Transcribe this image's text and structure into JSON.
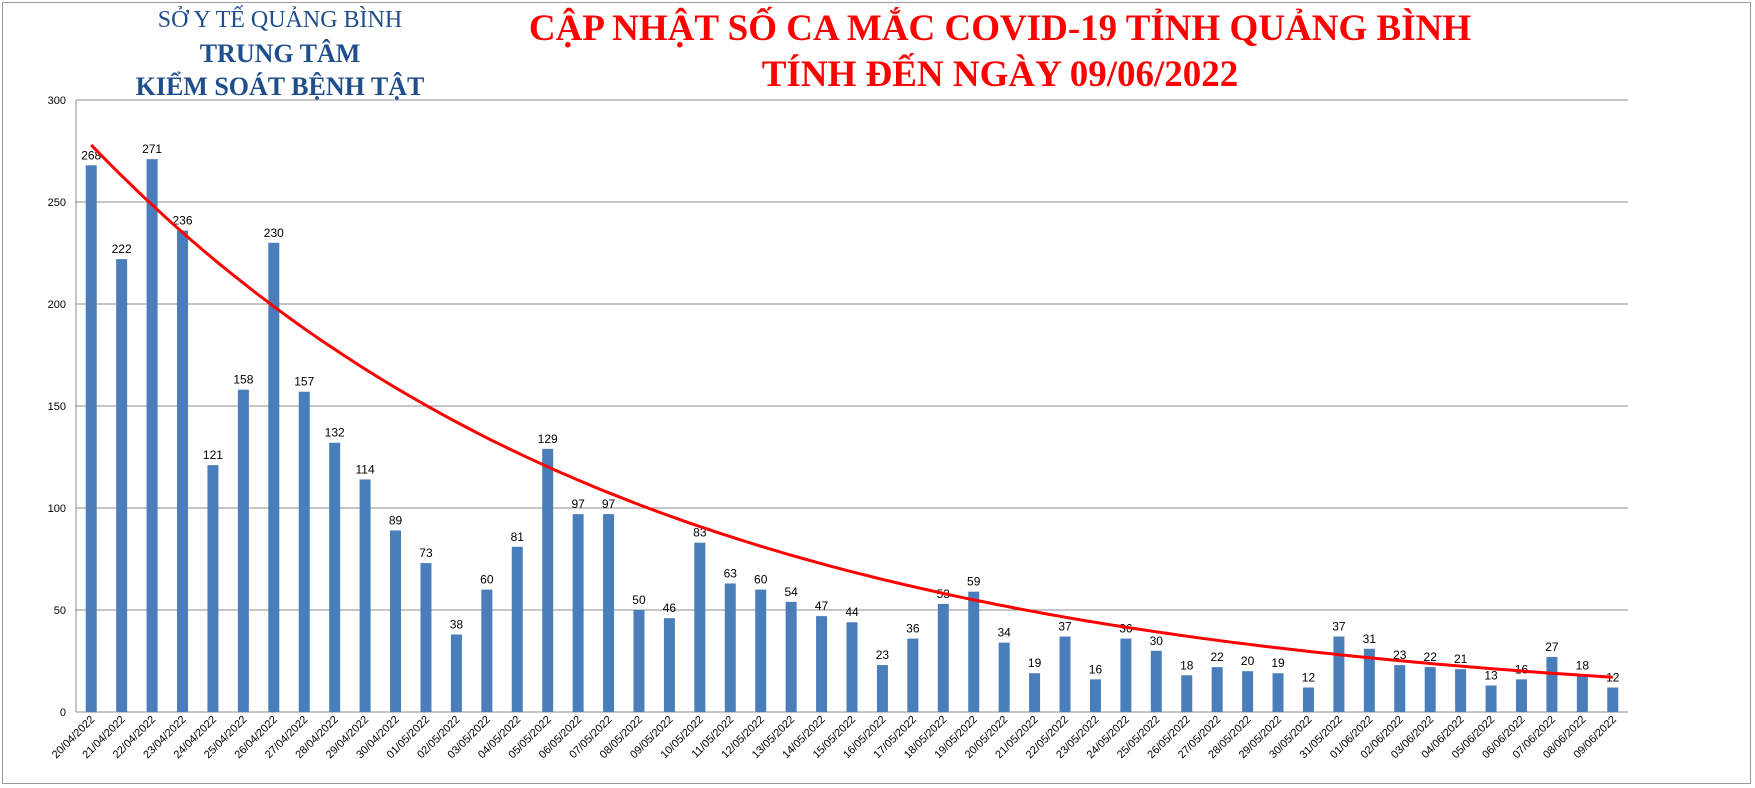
{
  "org": {
    "line1": "SỞ Y TẾ QUẢNG BÌNH",
    "line2": "TRUNG TÂM",
    "line3": "KIỂM SOÁT BỆNH TẬT"
  },
  "title": {
    "line1": "CẬP NHẬT SỐ CA MẮC COVID-19 TỈNH QUẢNG BÌNH",
    "line2": "TÍNH ĐẾN NGÀY 09/06/2022"
  },
  "colors": {
    "bar": "#4a7ebb",
    "trend": "#ff0000",
    "grid": "#8c8c8c",
    "org_text": "#1f4e8c",
    "title_text": "#ff0000"
  },
  "chart_data": {
    "type": "bar",
    "title": "CẬP NHẬT SỐ CA MẮC COVID-19 TỈNH QUẢNG BÌNH TÍNH ĐẾN NGÀY 09/06/2022",
    "xlabel": "",
    "ylabel": "",
    "ylim": [
      0,
      300
    ],
    "yticks": [
      0,
      50,
      100,
      150,
      200,
      250,
      300
    ],
    "grid": true,
    "categories": [
      "20/04/2022",
      "21/04/2022",
      "22/04/2022",
      "23/04/2022",
      "24/04/2022",
      "25/04/2022",
      "26/04/2022",
      "27/04/2022",
      "28/04/2022",
      "29/04/2022",
      "30/04/2022",
      "01/05/2022",
      "02/05/2022",
      "03/05/2022",
      "04/05/2022",
      "05/05/2022",
      "06/05/2022",
      "07/05/2022",
      "08/05/2022",
      "09/05/2022",
      "10/05/2022",
      "11/05/2022",
      "12/05/2022",
      "13/05/2022",
      "14/05/2022",
      "15/05/2022",
      "16/05/2022",
      "17/05/2022",
      "18/05/2022",
      "19/05/2022",
      "20/05/2022",
      "21/05/2022",
      "22/05/2022",
      "23/05/2022",
      "24/05/2022",
      "25/05/2022",
      "26/05/2022",
      "27/05/2022",
      "28/05/2022",
      "29/05/2022",
      "30/05/2022",
      "31/05/2022",
      "01/06/2022",
      "02/06/2022",
      "03/06/2022",
      "04/06/2022",
      "05/06/2022",
      "06/06/2022",
      "07/06/2022",
      "08/06/2022",
      "09/06/2022"
    ],
    "values": [
      268,
      222,
      271,
      236,
      121,
      158,
      230,
      157,
      132,
      114,
      89,
      73,
      38,
      60,
      81,
      129,
      97,
      97,
      50,
      46,
      83,
      63,
      60,
      54,
      47,
      44,
      23,
      36,
      53,
      59,
      34,
      19,
      37,
      16,
      36,
      30,
      18,
      22,
      20,
      19,
      12,
      37,
      31,
      23,
      22,
      21,
      13,
      16,
      27,
      18,
      12
    ],
    "trendline": {
      "type": "exponential",
      "start": 278,
      "end": 17
    }
  }
}
